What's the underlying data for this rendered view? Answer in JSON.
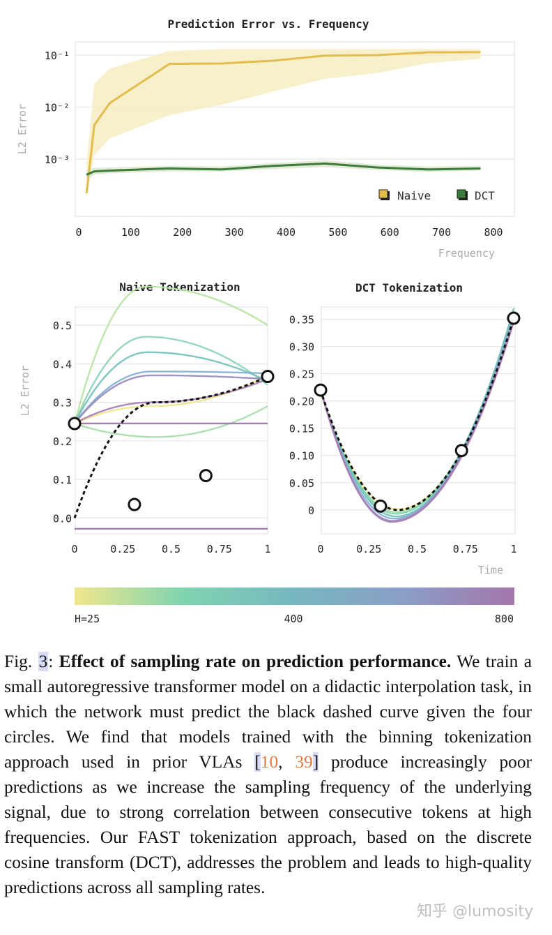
{
  "figure": {
    "colorbar": {
      "labels": [
        "H=25",
        "400",
        "800"
      ],
      "colors": [
        "#f0e68c",
        "#7fd4b0",
        "#77b7c0",
        "#8a9ec6",
        "#a476ac"
      ]
    }
  },
  "chart_data": [
    {
      "type": "line",
      "title": "Prediction Error vs. Frequency",
      "xlabel": "Frequency",
      "ylabel": "L2 Error",
      "yscale": "log",
      "xlim": [
        0,
        800
      ],
      "xticks": [
        "0",
        "100",
        "200",
        "300",
        "400",
        "500",
        "600",
        "700",
        "800"
      ],
      "yticks": [
        "10⁻¹",
        "10⁻²",
        "10⁻³"
      ],
      "grid": true,
      "legend": "bottom-right",
      "x": [
        15,
        30,
        60,
        175,
        275,
        375,
        475,
        575,
        675,
        775
      ],
      "series": [
        {
          "name": "Naive",
          "color": "#e2bd4d",
          "band_color": "#f7ecc2",
          "values": [
            0.00022,
            0.0045,
            0.012,
            0.068,
            0.069,
            0.078,
            0.098,
            0.1,
            0.113,
            0.114
          ],
          "lower": [
            0.00018,
            0.0012,
            0.0025,
            0.007,
            0.011,
            0.02,
            0.035,
            0.045,
            0.07,
            0.085
          ],
          "upper": [
            0.0008,
            0.028,
            0.055,
            0.12,
            0.13,
            0.13,
            0.13,
            0.13,
            0.13,
            0.13
          ]
        },
        {
          "name": "DCT",
          "color": "#3e7a3b",
          "band_color": "#dbe8cf",
          "values": [
            0.0005,
            0.00058,
            0.0006,
            0.00066,
            0.00063,
            0.00074,
            0.00082,
            0.00069,
            0.00063,
            0.00066
          ],
          "lower": [
            0.0004,
            0.0005,
            0.00053,
            0.00058,
            0.00058,
            0.00064,
            0.0007,
            0.00062,
            0.00057,
            0.0006
          ],
          "upper": [
            0.00062,
            0.00068,
            0.00069,
            0.00074,
            0.00072,
            0.00084,
            0.00095,
            0.00078,
            0.00072,
            0.00074
          ]
        }
      ]
    },
    {
      "type": "line",
      "title": "Naive Tokenization",
      "ylabel": "L2 Error",
      "xlim": [
        0,
        1
      ],
      "ylim": [
        -0.05,
        0.52
      ],
      "xticks": [
        "0",
        "0.25",
        "0.5",
        "0.75",
        "1"
      ],
      "yticks": [
        "0.5",
        "0.4",
        "0.3",
        "0.2",
        "0.1",
        "0.0"
      ],
      "grid": true,
      "target": {
        "a": 0.0,
        "h": 0.42,
        "b": 0.3,
        "c": 0.367
      },
      "points": [
        {
          "x": 0,
          "y": 0.245
        },
        {
          "x": 0.31,
          "y": 0.035
        },
        {
          "x": 0.68,
          "y": 0.11
        },
        {
          "x": 1,
          "y": 0.367
        }
      ],
      "series": [
        {
          "color": "#efe78c",
          "a": 0.245,
          "h": 0.4,
          "b": 0.29,
          "c": 0.37,
          "lo": -1
        },
        {
          "color": "#b6e3a0",
          "a": 0.245,
          "h": 0.37,
          "b": 0.6,
          "c": 0.5,
          "lo": 0.03
        },
        {
          "color": "#a5dbaa",
          "a": 0.245,
          "h": 0.42,
          "b": 0.21,
          "c": 0.29,
          "lo": 0.02
        },
        {
          "color": "#88d3b2",
          "a": 0.245,
          "h": 0.37,
          "b": 0.47,
          "c": 0.345,
          "lo": 0.0
        },
        {
          "color": "#72bfb8",
          "a": 0.245,
          "h": 0.38,
          "b": 0.43,
          "c": 0.355,
          "lo": -0.035
        },
        {
          "color": "#7faed0",
          "a": 0.245,
          "h": 0.4,
          "b": 0.38,
          "c": 0.375,
          "lo": 0.015
        },
        {
          "color": "#9786bd",
          "a": 0.245,
          "h": 0.4,
          "b": 0.37,
          "c": 0.36,
          "lo": 0.015
        },
        {
          "color": "#a57bb0",
          "a": 0.245,
          "h": 0.4,
          "b": 0.3,
          "c": 0.36,
          "lo": 0.005
        }
      ],
      "flat_lines": [
        {
          "color": "#a57bb0",
          "y": 0.245
        },
        {
          "color": "#a57bb0",
          "y": -0.028
        }
      ]
    },
    {
      "type": "line",
      "title": "DCT Tokenization",
      "xlabel": "Time",
      "xlim": [
        0,
        1
      ],
      "ylim": [
        -0.04,
        0.37
      ],
      "xticks": [
        "0",
        "0.25",
        "0.5",
        "0.75",
        "1"
      ],
      "yticks": [
        "0.35",
        "0.30",
        "0.25",
        "0.20",
        "0.15",
        "0.10",
        "0.05",
        "0"
      ],
      "grid": true,
      "target": {
        "a": 0.22,
        "h": 0.4,
        "b": 0.0,
        "c": 0.352
      },
      "points": [
        {
          "x": 0,
          "y": 0.22
        },
        {
          "x": 0.31,
          "y": 0.007
        },
        {
          "x": 0.73,
          "y": 0.109
        },
        {
          "x": 1,
          "y": 0.352
        }
      ],
      "series": [
        {
          "color": "#efe78c",
          "a": 0.215,
          "h": 0.4,
          "b": 0.001,
          "c": 0.352
        },
        {
          "color": "#a5dbaa",
          "a": 0.218,
          "h": 0.39,
          "b": -0.004,
          "c": 0.36
        },
        {
          "color": "#7fd4b0",
          "a": 0.22,
          "h": 0.39,
          "b": -0.007,
          "c": 0.365
        },
        {
          "color": "#72bfb8",
          "a": 0.22,
          "h": 0.39,
          "b": -0.012,
          "c": 0.37
        },
        {
          "color": "#7faed0",
          "a": 0.22,
          "h": 0.38,
          "b": -0.016,
          "c": 0.36
        },
        {
          "color": "#9786bd",
          "a": 0.222,
          "h": 0.37,
          "b": -0.02,
          "c": 0.348
        },
        {
          "color": "#a57bb0",
          "a": 0.222,
          "h": 0.37,
          "b": -0.022,
          "c": 0.345
        }
      ]
    }
  ],
  "caption": {
    "fig_label": "Fig. ",
    "fig_number": "3",
    "colon": ": ",
    "title": "Effect of sampling rate on prediction performance.",
    "text_before": " We train a small autoregressive transformer model on a didactic interpolation task, in which the network must predict the black dashed curve given the four circles. We find that models trained with the binning tokenization approach used in prior VLAs ",
    "bracket_open": "[",
    "cite_1": "10",
    "cite_sep": ", ",
    "cite_2": "39",
    "bracket_close": "]",
    "text_after": " produce increasingly poor predictions as we increase the sampling frequency of the underlying signal, due to strong correlation between consecutive tokens at high frequencies. Our FAST tokenization approach, based on the discrete cosine transform (DCT), addresses the problem and leads to high-quality predictions across all sampling rates."
  },
  "watermark": "知乎 @lumosity"
}
